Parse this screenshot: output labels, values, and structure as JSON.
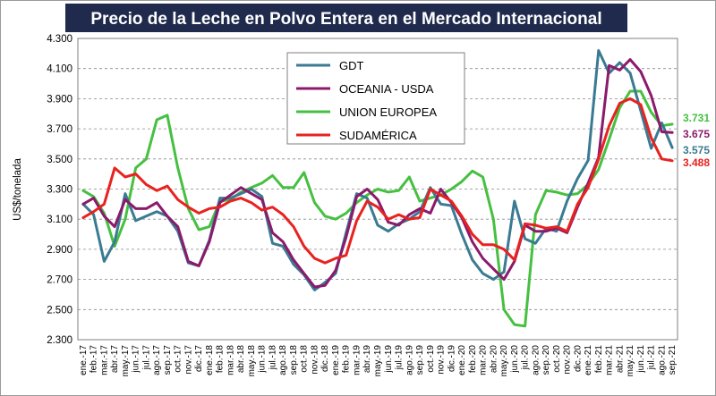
{
  "chart_data": {
    "type": "line",
    "title": "Precio de la Leche en Polvo Entera en el Mercado Internacional",
    "ylabel": "US$/tonelada",
    "xlabel": "",
    "ylim": [
      2300,
      4300
    ],
    "yticks": [
      "2.300",
      "2.500",
      "2.700",
      "2.900",
      "3.100",
      "3.300",
      "3.500",
      "3.700",
      "3.900",
      "4.100",
      "4.300"
    ],
    "grid": "horizontal-dashed",
    "legend_position": "top-center",
    "categories": [
      "ene.-17",
      "feb.-17",
      "mar.-17",
      "abr.-17",
      "may.-17",
      "jun.-17",
      "jul.-17",
      "ago.-17",
      "sep.-17",
      "oct.-17",
      "nov.-17",
      "dic.-17",
      "ene.-18",
      "feb.-18",
      "mar.-18",
      "abr.-18",
      "may.-18",
      "jun.-18",
      "jul.-18",
      "ago.-18",
      "sep.-18",
      "oct.-18",
      "nov.-18",
      "dic.-18",
      "ene.-19",
      "feb.-19",
      "mar.-19",
      "abr.-19",
      "may.-19",
      "jun.-19",
      "jul.-19",
      "ago.-19",
      "sep.-19",
      "oct.-19",
      "nov.-19",
      "dic.-19",
      "ene.-20",
      "feb.-20",
      "mar.-20",
      "abr.-20",
      "may.-20",
      "jun.-20",
      "jul.-20",
      "ago.-20",
      "sep.-20",
      "oct.-20",
      "nov.-20",
      "dic.-20",
      "ene.-21",
      "feb.-21",
      "mar.-21",
      "abr.-21",
      "may.-21",
      "jun.-21",
      "jul.-21",
      "ago.-21",
      "sep.-21"
    ],
    "series": [
      {
        "name": "GDT",
        "color": "#3a7a92",
        "values": [
          3200,
          3130,
          2820,
          2950,
          3270,
          3090,
          3120,
          3150,
          3120,
          3020,
          2810,
          2790,
          2960,
          3240,
          3240,
          3270,
          3300,
          3250,
          2940,
          2920,
          2800,
          2730,
          2630,
          2680,
          2740,
          3010,
          3270,
          3240,
          3060,
          3020,
          3070,
          3100,
          3150,
          3310,
          3200,
          3190,
          3000,
          2830,
          2740,
          2700,
          2750,
          3220,
          2970,
          2940,
          3040,
          3020,
          3220,
          3370,
          3490,
          4220,
          4070,
          4140,
          4070,
          3820,
          3570,
          3740,
          3575
        ],
        "end_label": "3.575"
      },
      {
        "name": "OCEANIA - USDA",
        "color": "#8b1a6b",
        "values": [
          3200,
          3240,
          3120,
          3050,
          3230,
          3170,
          3170,
          3210,
          3120,
          3050,
          2820,
          2790,
          2950,
          3210,
          3260,
          3310,
          3270,
          3230,
          3010,
          2950,
          2830,
          2740,
          2650,
          2660,
          2760,
          2980,
          3250,
          3300,
          3230,
          3080,
          3060,
          3130,
          3170,
          3140,
          3300,
          3210,
          3110,
          2950,
          2840,
          2770,
          2700,
          2820,
          3060,
          3020,
          3020,
          3040,
          3010,
          3180,
          3340,
          3510,
          4120,
          4090,
          4160,
          4080,
          3920,
          3680,
          3675
        ],
        "end_label": "3.675"
      },
      {
        "name": "UNION EUROPEA",
        "color": "#46c040",
        "values": [
          3290,
          3250,
          3140,
          2920,
          3100,
          3440,
          3500,
          3760,
          3790,
          3440,
          3170,
          3030,
          3050,
          3220,
          3230,
          3280,
          3310,
          3340,
          3390,
          3310,
          3310,
          3410,
          3210,
          3120,
          3100,
          3140,
          3210,
          3260,
          3300,
          3280,
          3290,
          3380,
          3220,
          3240,
          3260,
          3300,
          3350,
          3420,
          3380,
          3100,
          2500,
          2400,
          2390,
          3130,
          3290,
          3280,
          3260,
          3270,
          3330,
          3430,
          3630,
          3840,
          3950,
          3950,
          3810,
          3720,
          3731
        ],
        "end_label": "3.731"
      },
      {
        "name": "SUDAMÉRICA",
        "color": "#e8221f",
        "values": [
          3110,
          3150,
          3200,
          3440,
          3380,
          3400,
          3330,
          3290,
          3320,
          3230,
          3180,
          3140,
          3170,
          3180,
          3220,
          3240,
          3210,
          3160,
          3180,
          3130,
          3050,
          2920,
          2840,
          2810,
          2840,
          2860,
          3090,
          3220,
          3180,
          3100,
          3130,
          3100,
          3110,
          3300,
          3260,
          3220,
          3120,
          3000,
          2930,
          2930,
          2900,
          2830,
          3070,
          3060,
          3040,
          3050,
          3020,
          3200,
          3310,
          3500,
          3720,
          3870,
          3900,
          3860,
          3640,
          3500,
          3488
        ],
        "end_label": "3.488"
      }
    ]
  }
}
